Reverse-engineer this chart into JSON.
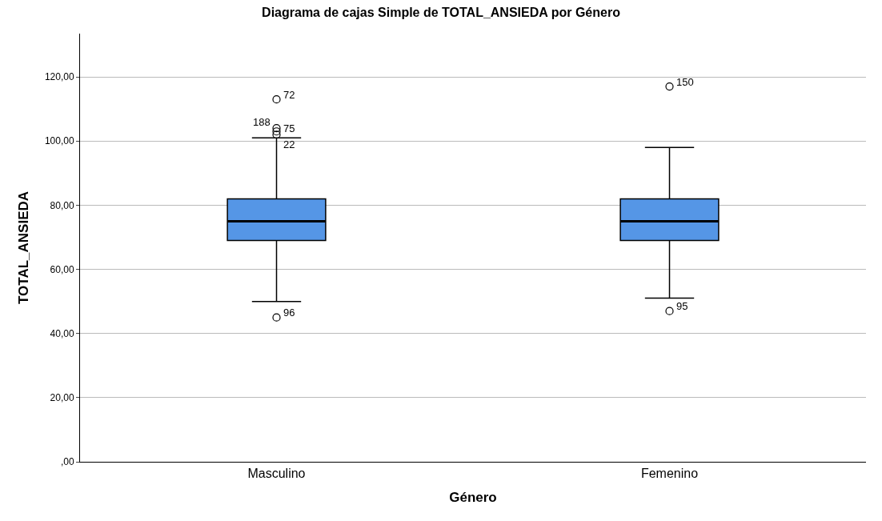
{
  "chart_data": {
    "type": "box",
    "title": "Diagrama de cajas Simple de TOTAL_ANSIEDA por Género",
    "xlabel": "Género",
    "ylabel": "TOTAL_ANSIEDA",
    "categories": [
      "Masculino",
      "Femenino"
    ],
    "boxes": [
      {
        "low": 50,
        "q1": 69,
        "median": 75,
        "q3": 82,
        "high": 101,
        "outliers": [
          113,
          104,
          103,
          102,
          45
        ]
      },
      {
        "low": 51,
        "q1": 69,
        "median": 75,
        "q3": 82,
        "high": 98,
        "outliers": [
          117,
          47
        ]
      }
    ],
    "color": "#5596e6",
    "ylim": [
      0,
      133.5
    ],
    "yticks": [
      {
        "value": 0,
        "label": ",00"
      },
      {
        "value": 20,
        "label": "20,00"
      },
      {
        "value": 40,
        "label": "40,00"
      },
      {
        "value": 60,
        "label": "60,00"
      },
      {
        "value": 80,
        "label": "80,00"
      },
      {
        "value": 100,
        "label": "100,00"
      },
      {
        "value": 120,
        "label": "120,00"
      }
    ],
    "grid": "y",
    "marker": "circle",
    "annotations": [
      "72",
      "188",
      "75",
      "22",
      "96",
      "150",
      "95"
    ]
  }
}
